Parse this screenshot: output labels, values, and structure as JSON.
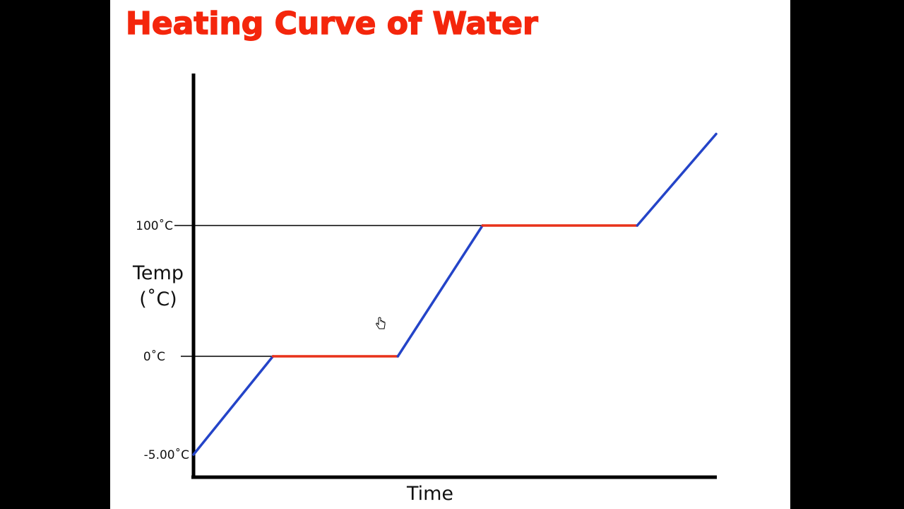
{
  "chart_data": {
    "type": "line",
    "title": "Heating Curve of Water",
    "xlabel": "Time",
    "ylabel": "Temp",
    "ylabel_unit": "(˚C)",
    "yticks": [
      {
        "value": -5,
        "label": "-5.00˚C"
      },
      {
        "value": 0,
        "label": "0˚C"
      },
      {
        "value": 100,
        "label": "100˚C"
      }
    ],
    "reference_lines": [
      0,
      100
    ],
    "series": [
      {
        "segments": [
          {
            "phase": "heating",
            "color": "#2444c8",
            "points": [
              [
                0,
                -5
              ],
              [
                15.2,
                0
              ]
            ]
          },
          {
            "phase": "plateau",
            "color": "#e8321a",
            "points": [
              [
                15.2,
                0
              ],
              [
                39.1,
                0
              ]
            ]
          },
          {
            "phase": "heating",
            "color": "#2444c8",
            "points": [
              [
                39.1,
                0
              ],
              [
                55.3,
                100
              ]
            ]
          },
          {
            "phase": "plateau",
            "color": "#e8321a",
            "points": [
              [
                55.3,
                100
              ],
              [
                84.9,
                100
              ]
            ]
          },
          {
            "phase": "heating",
            "color": "#2444c8",
            "points": [
              [
                84.9,
                100
              ],
              [
                100,
                170
              ]
            ]
          }
        ]
      }
    ],
    "xlim": [
      0,
      100
    ],
    "grid": false,
    "legend": "none"
  },
  "cursor": {
    "icon": "hand-pointer-icon"
  }
}
